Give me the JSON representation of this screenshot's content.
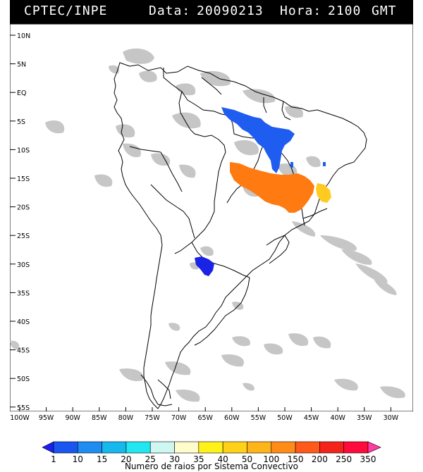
{
  "header": {
    "source": "CPTEC/INPE",
    "date_label": "Data:",
    "date_value": "20090213",
    "hour_label": "Hora:",
    "hour_value": "2100",
    "tz": "GMT"
  },
  "map": {
    "region": "South America",
    "lat_labels": [
      "10N",
      "5N",
      "EQ",
      "5S",
      "10S",
      "15S",
      "20S",
      "25S",
      "30S",
      "35S",
      "40S",
      "45S",
      "50S",
      "55S"
    ],
    "lon_labels": [
      "100W",
      "95W",
      "90W",
      "85W",
      "80W",
      "75W",
      "70W",
      "65W",
      "60W",
      "55W",
      "50W",
      "45W",
      "40W",
      "35W",
      "30W"
    ],
    "cloud_color": "#c4c4c4",
    "coast_color": "#000000"
  },
  "colorbar": {
    "ticks": [
      "1",
      "10",
      "15",
      "20",
      "25",
      "30",
      "35",
      "40",
      "50",
      "100",
      "150",
      "200",
      "250",
      "350"
    ],
    "colors": [
      "#1a20f0",
      "#1b55f0",
      "#1e8cf0",
      "#16b8ee",
      "#22e6f0",
      "#cdf7f0",
      "#fffccc",
      "#fff21a",
      "#ffd21a",
      "#ffb419",
      "#ff8c19",
      "#ff5a19",
      "#f4231a",
      "#ff0a3c",
      "#ff3ca0"
    ],
    "caption": "Numero de raios por Sistema Convectivo"
  }
}
